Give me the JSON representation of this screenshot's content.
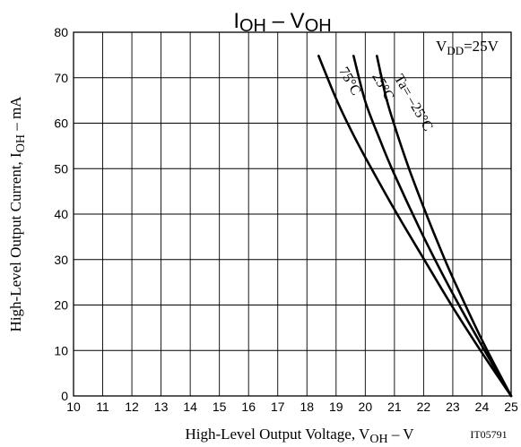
{
  "chart_data": {
    "type": "line",
    "title": {
      "main": "I",
      "main_sub": "OH",
      "sep": " – ",
      "second": "V",
      "second_sub": "OH"
    },
    "condition": {
      "main": "V",
      "sub": "DD",
      "rest": "=25V"
    },
    "xlabel": {
      "pre": "High-Level Output Voltage, V",
      "sub": "OH",
      "post": "  –  V"
    },
    "ylabel": {
      "pre": "High-Level Output Current, I",
      "sub": "OH",
      "post": "  –  mA"
    },
    "code": "IT05791",
    "xlim": [
      10,
      25
    ],
    "ylim": [
      0,
      80
    ],
    "xticks": [
      10,
      11,
      12,
      13,
      14,
      15,
      16,
      17,
      18,
      19,
      20,
      21,
      22,
      23,
      24,
      25
    ],
    "yticks": [
      0,
      10,
      20,
      30,
      40,
      50,
      60,
      70,
      80
    ],
    "grid": true,
    "series": [
      {
        "name": "75°C",
        "x": [
          25.0,
          24.0,
          23.0,
          22.0,
          21.0,
          20.0,
          19.5,
          19.0,
          18.4
        ],
        "y": [
          0,
          9.5,
          19.5,
          30.2,
          41.0,
          52.5,
          58.6,
          65.4,
          74.8
        ]
      },
      {
        "name": "25°C",
        "x": [
          25.0,
          24.0,
          23.0,
          22.0,
          21.0,
          20.5,
          20.0,
          19.6
        ],
        "y": [
          0,
          11.0,
          22.5,
          35.0,
          48.7,
          56.4,
          64.8,
          74.8
        ]
      },
      {
        "name": "Ta= –25°C",
        "x": [
          25.0,
          24.0,
          23.0,
          22.5,
          22.0,
          21.5,
          21.0,
          20.7,
          20.4
        ],
        "y": [
          0,
          12.3,
          26.0,
          33.5,
          41.5,
          50.0,
          59.5,
          66.0,
          74.8
        ]
      }
    ],
    "legend": "inline labels along curves"
  }
}
